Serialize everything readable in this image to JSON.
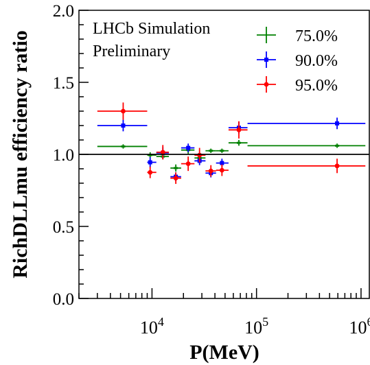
{
  "chart_data": {
    "type": "scatter",
    "xscale": "log",
    "xlim": [
      2000,
      1200000
    ],
    "ylim": [
      0.0,
      2.0
    ],
    "xlabel": "P(MeV)",
    "ylabel": "RichDLLmu efficiency ratio",
    "y_ticks": [
      {
        "value": 0.0,
        "label": "0.0"
      },
      {
        "value": 0.5,
        "label": "0.5"
      },
      {
        "value": 1.0,
        "label": "1.0"
      },
      {
        "value": 1.5,
        "label": "1.5"
      },
      {
        "value": 2.0,
        "label": "2.0"
      }
    ],
    "x_ticks": [
      {
        "value": 10000,
        "base": "10",
        "exp": "4"
      },
      {
        "value": 100000,
        "base": "10",
        "exp": "5"
      },
      {
        "value": 1000000,
        "base": "10",
        "exp": "6"
      }
    ],
    "reference_line": 1.0,
    "annotation": [
      "LHCb Simulation",
      "Preliminary"
    ],
    "legend_position": "top-right",
    "grid": false,
    "series": [
      {
        "name": "75.0%",
        "color": "#008000",
        "points": [
          {
            "x": 5300,
            "xlo": 3000,
            "xhi": 9000,
            "y": 1.055,
            "yerr": 0.015
          },
          {
            "x": 9600,
            "xlo": 9000,
            "xhi": 11000,
            "y": 0.995,
            "yerr": 0.02
          },
          {
            "x": 12700,
            "xlo": 11000,
            "xhi": 14500,
            "y": 0.985,
            "yerr": 0.02
          },
          {
            "x": 16900,
            "xlo": 15000,
            "xhi": 19000,
            "y": 0.905,
            "yerr": 0.025
          },
          {
            "x": 22200,
            "xlo": 19000,
            "xhi": 25500,
            "y": 1.03,
            "yerr": 0.025
          },
          {
            "x": 28500,
            "xlo": 25500,
            "xhi": 32500,
            "y": 0.975,
            "yerr": 0.025
          },
          {
            "x": 36600,
            "xlo": 32500,
            "xhi": 41000,
            "y": 1.025,
            "yerr": 0.015
          },
          {
            "x": 46700,
            "xlo": 41000,
            "xhi": 54000,
            "y": 1.025,
            "yerr": 0.015
          },
          {
            "x": 67800,
            "xlo": 54000,
            "xhi": 82000,
            "y": 1.08,
            "yerr": 0.02
          },
          {
            "x": 590000,
            "xlo": 82000,
            "xhi": 1100000,
            "y": 1.06,
            "yerr": 0.015
          }
        ]
      },
      {
        "name": "90.0%",
        "color": "#0000ff",
        "points": [
          {
            "x": 5300,
            "xlo": 3000,
            "xhi": 9000,
            "y": 1.2,
            "yerr": 0.04
          },
          {
            "x": 9600,
            "xlo": 9000,
            "xhi": 11000,
            "y": 0.945,
            "yerr": 0.035
          },
          {
            "x": 12700,
            "xlo": 11000,
            "xhi": 14500,
            "y": 1.01,
            "yerr": 0.04
          },
          {
            "x": 16900,
            "xlo": 15000,
            "xhi": 19000,
            "y": 0.845,
            "yerr": 0.03
          },
          {
            "x": 22200,
            "xlo": 19000,
            "xhi": 25500,
            "y": 1.045,
            "yerr": 0.03
          },
          {
            "x": 28500,
            "xlo": 25500,
            "xhi": 32500,
            "y": 0.955,
            "yerr": 0.03
          },
          {
            "x": 36600,
            "xlo": 32500,
            "xhi": 41000,
            "y": 0.87,
            "yerr": 0.03
          },
          {
            "x": 46700,
            "xlo": 41000,
            "xhi": 54000,
            "y": 0.94,
            "yerr": 0.03
          },
          {
            "x": 67800,
            "xlo": 54000,
            "xhi": 82000,
            "y": 1.185,
            "yerr": 0.04
          },
          {
            "x": 590000,
            "xlo": 82000,
            "xhi": 1100000,
            "y": 1.215,
            "yerr": 0.04
          }
        ]
      },
      {
        "name": "95.0%",
        "color": "#ff0000",
        "points": [
          {
            "x": 5300,
            "xlo": 3000,
            "xhi": 9000,
            "y": 1.3,
            "yerr": 0.06
          },
          {
            "x": 9600,
            "xlo": 9000,
            "xhi": 11000,
            "y": 0.875,
            "yerr": 0.04
          },
          {
            "x": 12700,
            "xlo": 11000,
            "xhi": 14500,
            "y": 1.015,
            "yerr": 0.05
          },
          {
            "x": 16900,
            "xlo": 15000,
            "xhi": 19000,
            "y": 0.835,
            "yerr": 0.04
          },
          {
            "x": 22200,
            "xlo": 19000,
            "xhi": 25500,
            "y": 0.935,
            "yerr": 0.05
          },
          {
            "x": 28500,
            "xlo": 25500,
            "xhi": 32500,
            "y": 0.995,
            "yerr": 0.05
          },
          {
            "x": 36600,
            "xlo": 32500,
            "xhi": 41000,
            "y": 0.885,
            "yerr": 0.04
          },
          {
            "x": 46700,
            "xlo": 41000,
            "xhi": 54000,
            "y": 0.89,
            "yerr": 0.04
          },
          {
            "x": 67800,
            "xlo": 54000,
            "xhi": 82000,
            "y": 1.17,
            "yerr": 0.06
          },
          {
            "x": 590000,
            "xlo": 82000,
            "xhi": 1100000,
            "y": 0.92,
            "yerr": 0.05
          }
        ]
      }
    ]
  }
}
